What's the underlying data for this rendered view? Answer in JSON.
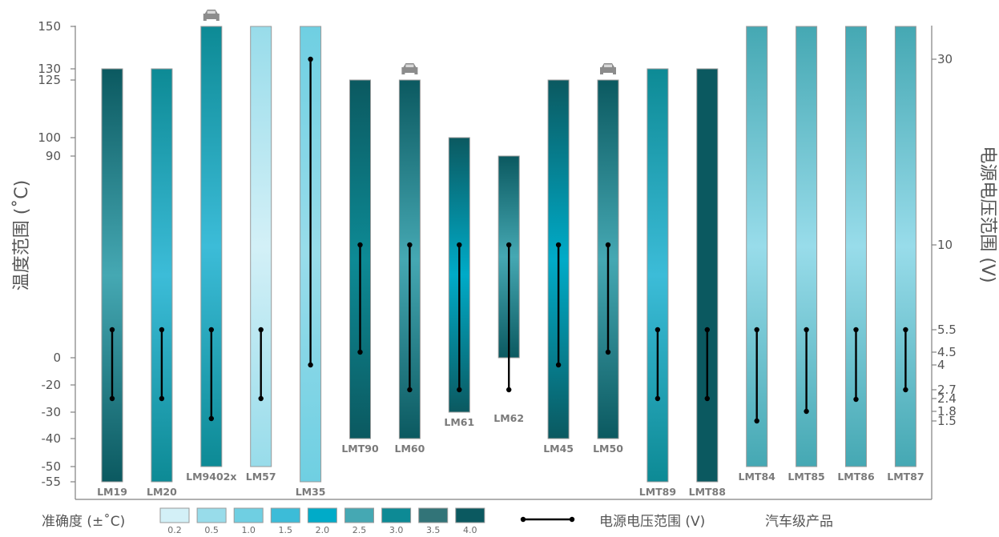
{
  "chart_data": {
    "type": "range-bar",
    "left_axis": {
      "label": "温度范围 (˚C)",
      "ticks": [
        "150",
        "130",
        "125",
        "100",
        "90",
        "0",
        "-20",
        "-30",
        "-40",
        "-50",
        "-55"
      ]
    },
    "right_axis": {
      "label": "电源电压范围 (V)",
      "scale": "log",
      "ticks": [
        "30",
        "10",
        "5.5",
        "4.5",
        "4",
        "2.7",
        "2.4",
        "1.8",
        "1.5"
      ]
    },
    "legend": {
      "accuracy_title": "准确度 (±˚C)",
      "accuracy_levels": [
        {
          "value": "0.2",
          "color": "#d3f0f7"
        },
        {
          "value": "0.5",
          "color": "#98dcea"
        },
        {
          "value": "1.0",
          "color": "#6fcfe2"
        },
        {
          "value": "1.5",
          "color": "#3cbcd8"
        },
        {
          "value": "2.0",
          "color": "#00abc8"
        },
        {
          "value": "2.5",
          "color": "#45a8b3"
        },
        {
          "value": "3.0",
          "color": "#0d8a95"
        },
        {
          "value": "3.5",
          "color": "#327478"
        },
        {
          "value": "4.0",
          "color": "#0b5960"
        }
      ],
      "voltage_label": "电源电压范围 (V)",
      "auto_label": "汽车级产品"
    },
    "series": [
      {
        "name": "LM19",
        "temp": [
          -55,
          130
        ],
        "voltage": [
          2.4,
          5.5
        ],
        "auto": false,
        "top": "#0b5960",
        "mid": "#45a8b3",
        "bottom": "#0b5960",
        "label_pos": "below"
      },
      {
        "name": "LM20",
        "temp": [
          -55,
          130
        ],
        "voltage": [
          2.4,
          5.5
        ],
        "auto": false,
        "top": "#0d8a95",
        "mid": "#3cbcd8",
        "bottom": "#0d8a95",
        "label_pos": "below"
      },
      {
        "name": "LM9402x",
        "temp": [
          -50,
          150
        ],
        "voltage": [
          1.6,
          5.5
        ],
        "auto": true,
        "top": "#0d8a95",
        "mid": "#3cbcd8",
        "bottom": "#0d8a95",
        "label_pos": "below"
      },
      {
        "name": "LM57",
        "temp": [
          -50,
          150
        ],
        "voltage": [
          2.4,
          5.5
        ],
        "auto": false,
        "top": "#98dcea",
        "mid": "#d3f0f7",
        "bottom": "#98dcea",
        "label_pos": "below"
      },
      {
        "name": "LM35",
        "temp": [
          -55,
          150
        ],
        "voltage": [
          4,
          30
        ],
        "auto": false,
        "top": "#6fcfe2",
        "mid": "#98dcea",
        "bottom": "#6fcfe2",
        "label_pos": "below"
      },
      {
        "name": "LMT90",
        "temp": [
          -40,
          125
        ],
        "voltage": [
          4.5,
          10
        ],
        "auto": false,
        "top": "#0b5960",
        "mid": "#0d8a95",
        "bottom": "#0b5960",
        "label_pos": "below"
      },
      {
        "name": "LM60",
        "temp": [
          -40,
          125
        ],
        "voltage": [
          2.7,
          10
        ],
        "auto": true,
        "top": "#0b5960",
        "mid": "#45a8b3",
        "bottom": "#0b5960",
        "label_pos": "below"
      },
      {
        "name": "LM61",
        "temp": [
          -30,
          100
        ],
        "voltage": [
          2.7,
          10
        ],
        "auto": false,
        "top": "#0b5960",
        "mid": "#00abc8",
        "bottom": "#0b5960",
        "label_pos": "below"
      },
      {
        "name": "LM62",
        "temp": [
          0,
          90
        ],
        "voltage": [
          2.7,
          10
        ],
        "auto": false,
        "top": "#0b5960",
        "mid": "#45a8b3",
        "bottom": "#0b5960",
        "label_pos": "below"
      },
      {
        "name": "LM45",
        "temp": [
          -40,
          125
        ],
        "voltage": [
          4,
          10
        ],
        "auto": false,
        "top": "#0b5960",
        "mid": "#00abc8",
        "bottom": "#0b5960",
        "label_pos": "below"
      },
      {
        "name": "LM50",
        "temp": [
          -40,
          125
        ],
        "voltage": [
          4.5,
          10
        ],
        "auto": true,
        "top": "#0b5960",
        "mid": "#45a8b3",
        "bottom": "#0b5960",
        "label_pos": "below"
      },
      {
        "name": "LMT89",
        "temp": [
          -55,
          130
        ],
        "voltage": [
          2.4,
          5.5
        ],
        "auto": false,
        "top": "#0d8a95",
        "mid": "#3cbcd8",
        "bottom": "#0d8a95",
        "label_pos": "below"
      },
      {
        "name": "LMT88",
        "temp": [
          -55,
          130
        ],
        "voltage": [
          2.4,
          5.5
        ],
        "auto": false,
        "top": "#0b5960",
        "mid": "#0b5960",
        "bottom": "#0b5960",
        "label_pos": "below"
      },
      {
        "name": "LMT84",
        "temp": [
          -50,
          150
        ],
        "voltage": [
          1.5,
          5.5
        ],
        "auto": false,
        "top": "#45a8b3",
        "mid": "#98dcea",
        "bottom": "#45a8b3",
        "label_pos": "below"
      },
      {
        "name": "LMT85",
        "temp": [
          -50,
          150
        ],
        "voltage": [
          1.8,
          5.5
        ],
        "auto": false,
        "top": "#45a8b3",
        "mid": "#98dcea",
        "bottom": "#45a8b3",
        "label_pos": "below"
      },
      {
        "name": "LMT86",
        "temp": [
          -50,
          150
        ],
        "voltage": [
          2.2,
          5.5
        ],
        "auto": false,
        "top": "#45a8b3",
        "mid": "#98dcea",
        "bottom": "#45a8b3",
        "label_pos": "below"
      },
      {
        "name": "LMT87",
        "temp": [
          -50,
          150
        ],
        "voltage": [
          2.7,
          5.5
        ],
        "auto": false,
        "top": "#45a8b3",
        "mid": "#98dcea",
        "bottom": "#45a8b3",
        "label_pos": "below"
      }
    ]
  }
}
